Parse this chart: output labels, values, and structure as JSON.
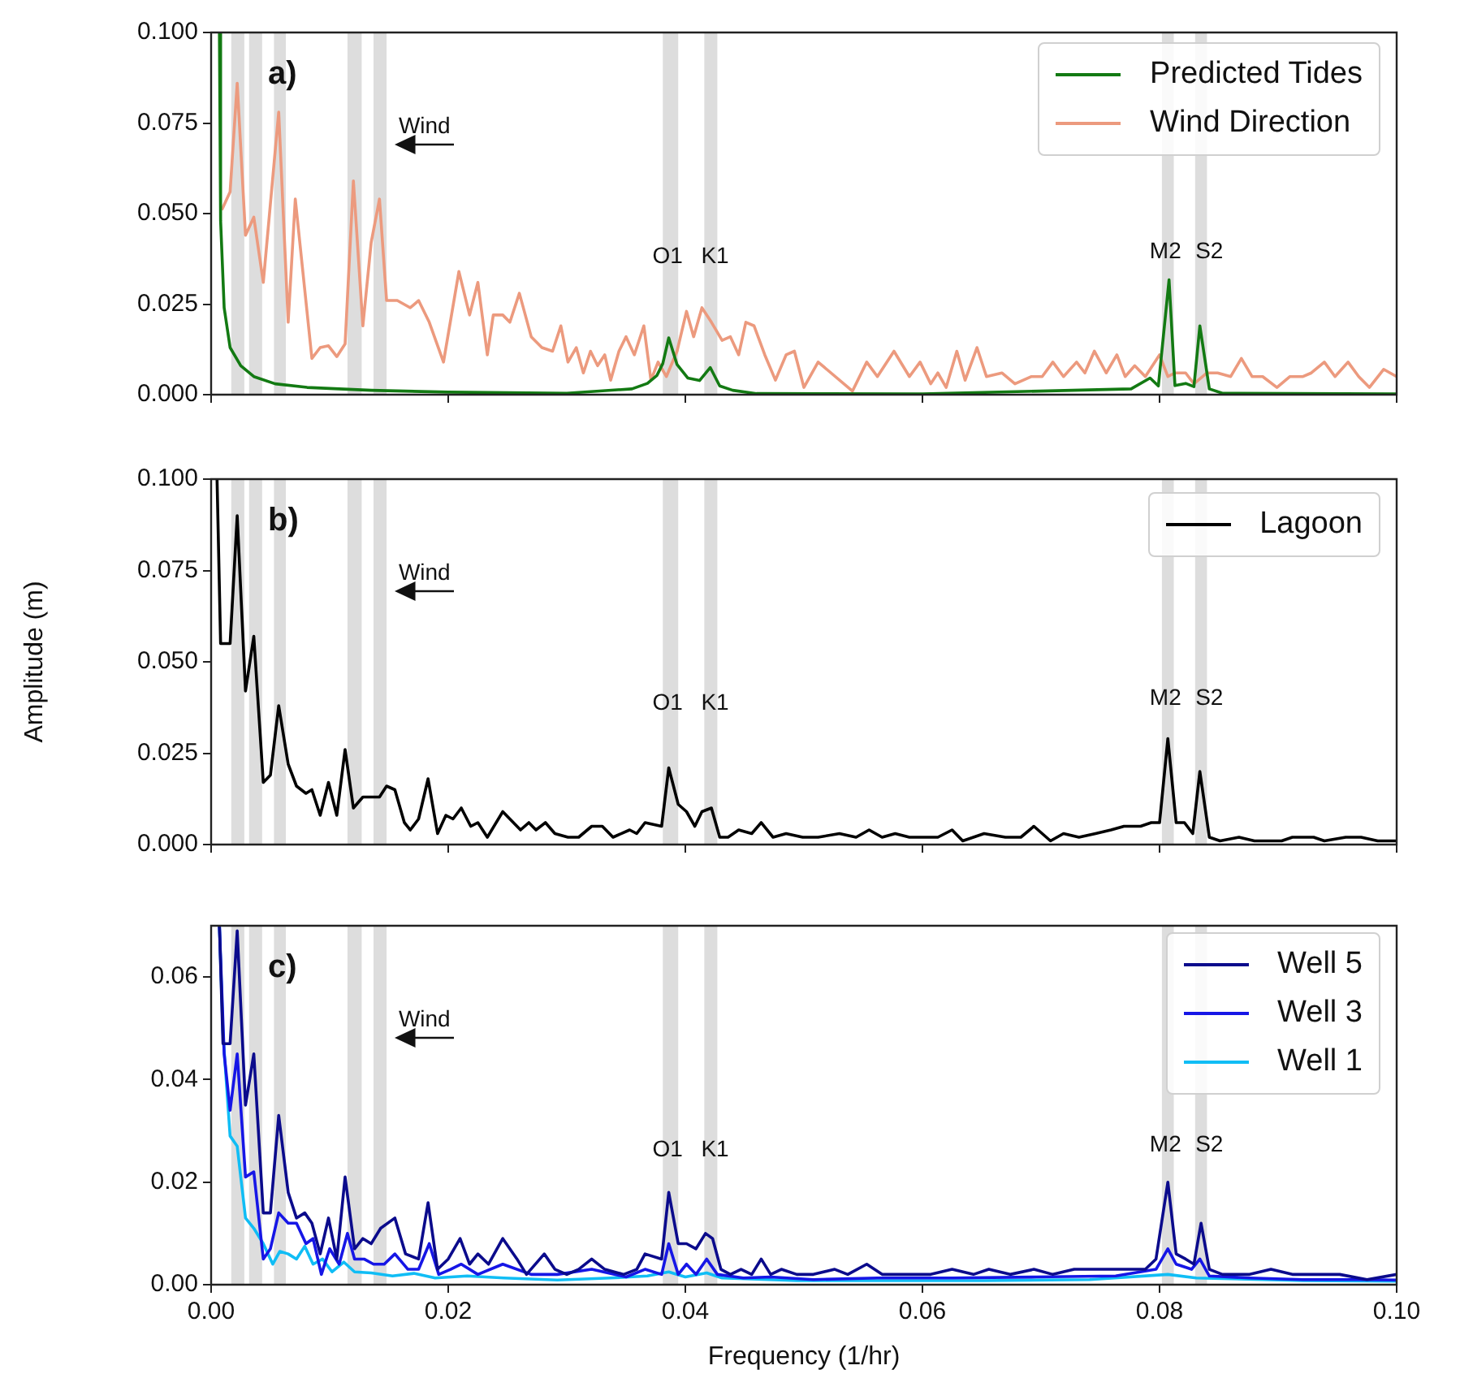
{
  "chart_data": [
    {
      "type": "line",
      "xlim": [
        0,
        0.1
      ],
      "ylim": [
        0,
        0.1
      ],
      "xticks": [
        {
          "value": 0,
          "label": null
        },
        {
          "value": 0.02,
          "label": null
        },
        {
          "value": 0.04,
          "label": null
        },
        {
          "value": 0.06,
          "label": null
        },
        {
          "value": 0.08,
          "label": null
        },
        {
          "value": 0.1,
          "label": null
        }
      ],
      "yticks": [
        {
          "value": 0,
          "label": "0.000"
        },
        {
          "value": 0.025,
          "label": "0.025"
        },
        {
          "value": 0.05,
          "label": "0.050"
        },
        {
          "value": 0.075,
          "label": "0.075"
        },
        {
          "value": 0.1,
          "label": "0.100"
        }
      ],
      "tick_labels": "y",
      "grid": false,
      "legend": "top right",
      "bands": [
        {
          "axis": "x",
          "from": 0.0017,
          "to": 0.0028,
          "color": "#dddddd"
        },
        {
          "axis": "x",
          "from": 0.0032,
          "to": 0.0043,
          "color": "#dddddd"
        },
        {
          "axis": "x",
          "from": 0.0053,
          "to": 0.0063,
          "color": "#dddddd"
        },
        {
          "axis": "x",
          "from": 0.0115,
          "to": 0.0127,
          "color": "#dddddd"
        },
        {
          "axis": "x",
          "from": 0.0137,
          "to": 0.0148,
          "color": "#dddddd"
        },
        {
          "axis": "x",
          "from": 0.0381,
          "to": 0.0394,
          "color": "#dddddd"
        },
        {
          "axis": "x",
          "from": 0.0416,
          "to": 0.0427,
          "color": "#dddddd"
        },
        {
          "axis": "x",
          "from": 0.0802,
          "to": 0.0812,
          "color": "#dddddd"
        },
        {
          "axis": "x",
          "from": 0.083,
          "to": 0.084,
          "color": "#dddddd"
        }
      ],
      "annotations": [
        "a)",
        "Wind",
        "O1",
        "K1",
        "M2",
        "S2"
      ],
      "series": [
        {
          "name": "Predicted Tides",
          "color": "#137a13",
          "x": [
            0.0007,
            0.0008,
            0.0011,
            0.0016,
            0.0025,
            0.0036,
            0.0054,
            0.0081,
            0.0135,
            0.02,
            0.03,
            0.0355,
            0.0368,
            0.0376,
            0.0381,
            0.0386,
            0.0393,
            0.0402,
            0.0412,
            0.0421,
            0.0429,
            0.044,
            0.046,
            0.06,
            0.0776,
            0.0792,
            0.0799,
            0.0808,
            0.0813,
            0.0822,
            0.0829,
            0.0834,
            0.0842,
            0.0853,
            0.1
          ],
          "values": [
            0.1,
            0.048,
            0.024,
            0.013,
            0.008,
            0.005,
            0.003,
            0.002,
            0.0012,
            0.0007,
            0.0004,
            0.0016,
            0.0031,
            0.0053,
            0.0086,
            0.0157,
            0.0083,
            0.0046,
            0.0039,
            0.0075,
            0.0024,
            0.0012,
            0.0003,
            0.0002,
            0.0016,
            0.0046,
            0.0024,
            0.0317,
            0.0025,
            0.0031,
            0.0022,
            0.019,
            0.0016,
            0.0004,
            0.0002
          ]
        },
        {
          "name": "Wind Direction",
          "color": "#ec9a7e",
          "x": [
            0.0009,
            0.0016,
            0.0022,
            0.0029,
            0.0036,
            0.0044,
            0.0057,
            0.0065,
            0.0071,
            0.0085,
            0.0092,
            0.0099,
            0.0106,
            0.0113,
            0.012,
            0.0128,
            0.0135,
            0.0142,
            0.0148,
            0.0157,
            0.0168,
            0.0175,
            0.0184,
            0.0196,
            0.0209,
            0.0218,
            0.0225,
            0.0233,
            0.0238,
            0.0246,
            0.0252,
            0.026,
            0.027,
            0.0279,
            0.0288,
            0.0295,
            0.0301,
            0.0308,
            0.0314,
            0.032,
            0.0326,
            0.0332,
            0.0337,
            0.0344,
            0.035,
            0.0357,
            0.0365,
            0.0371,
            0.0377,
            0.0384,
            0.0393,
            0.0401,
            0.0407,
            0.0414,
            0.0422,
            0.0431,
            0.0438,
            0.0445,
            0.0451,
            0.0458,
            0.0467,
            0.0476,
            0.0485,
            0.0492,
            0.05,
            0.0512,
            0.0541,
            0.0553,
            0.0562,
            0.0576,
            0.0589,
            0.0598,
            0.0607,
            0.0613,
            0.062,
            0.0629,
            0.0636,
            0.0646,
            0.0654,
            0.0667,
            0.0678,
            0.0692,
            0.0701,
            0.071,
            0.0719,
            0.073,
            0.0737,
            0.0745,
            0.0755,
            0.0764,
            0.0771,
            0.0779,
            0.0788,
            0.08,
            0.0807,
            0.0813,
            0.0822,
            0.0829,
            0.084,
            0.0849,
            0.086,
            0.0869,
            0.0878,
            0.0887,
            0.0899,
            0.091,
            0.0921,
            0.0928,
            0.0939,
            0.0948,
            0.0959,
            0.0968,
            0.0977,
            0.0989,
            0.1
          ],
          "values": [
            0.051,
            0.056,
            0.086,
            0.044,
            0.049,
            0.031,
            0.078,
            0.02,
            0.054,
            0.01,
            0.013,
            0.0135,
            0.0105,
            0.014,
            0.059,
            0.019,
            0.042,
            0.054,
            0.026,
            0.026,
            0.024,
            0.026,
            0.02,
            0.009,
            0.034,
            0.022,
            0.031,
            0.011,
            0.022,
            0.022,
            0.02,
            0.028,
            0.016,
            0.013,
            0.012,
            0.019,
            0.009,
            0.013,
            0.006,
            0.012,
            0.008,
            0.011,
            0.004,
            0.012,
            0.016,
            0.011,
            0.019,
            0.004,
            0.009,
            0.005,
            0.012,
            0.023,
            0.016,
            0.024,
            0.02,
            0.015,
            0.016,
            0.011,
            0.02,
            0.019,
            0.011,
            0.004,
            0.011,
            0.012,
            0.002,
            0.009,
            0.001,
            0.009,
            0.005,
            0.012,
            0.005,
            0.009,
            0.003,
            0.006,
            0.002,
            0.012,
            0.004,
            0.013,
            0.005,
            0.006,
            0.003,
            0.005,
            0.005,
            0.009,
            0.005,
            0.009,
            0.006,
            0.012,
            0.006,
            0.011,
            0.005,
            0.008,
            0.005,
            0.011,
            0.005,
            0.006,
            0.006,
            0.003,
            0.006,
            0.006,
            0.005,
            0.01,
            0.005,
            0.005,
            0.002,
            0.005,
            0.005,
            0.006,
            0.009,
            0.005,
            0.009,
            0.005,
            0.002,
            0.007,
            0.005
          ]
        }
      ]
    },
    {
      "type": "line",
      "xlim": [
        0,
        0.1
      ],
      "ylim": [
        0,
        0.1
      ],
      "ylabel": "Amplitude (m)",
      "xticks": [
        {
          "value": 0,
          "label": null
        },
        {
          "value": 0.02,
          "label": null
        },
        {
          "value": 0.04,
          "label": null
        },
        {
          "value": 0.06,
          "label": null
        },
        {
          "value": 0.08,
          "label": null
        },
        {
          "value": 0.1,
          "label": null
        }
      ],
      "yticks": [
        {
          "value": 0,
          "label": "0.000"
        },
        {
          "value": 0.025,
          "label": "0.025"
        },
        {
          "value": 0.05,
          "label": "0.050"
        },
        {
          "value": 0.075,
          "label": "0.075"
        },
        {
          "value": 0.1,
          "label": "0.100"
        }
      ],
      "tick_labels": "y",
      "grid": false,
      "legend": "top right",
      "bands": [
        {
          "axis": "x",
          "from": 0.0017,
          "to": 0.0028,
          "color": "#dddddd"
        },
        {
          "axis": "x",
          "from": 0.0032,
          "to": 0.0043,
          "color": "#dddddd"
        },
        {
          "axis": "x",
          "from": 0.0053,
          "to": 0.0063,
          "color": "#dddddd"
        },
        {
          "axis": "x",
          "from": 0.0115,
          "to": 0.0127,
          "color": "#dddddd"
        },
        {
          "axis": "x",
          "from": 0.0137,
          "to": 0.0148,
          "color": "#dddddd"
        },
        {
          "axis": "x",
          "from": 0.0381,
          "to": 0.0394,
          "color": "#dddddd"
        },
        {
          "axis": "x",
          "from": 0.0416,
          "to": 0.0427,
          "color": "#dddddd"
        },
        {
          "axis": "x",
          "from": 0.0802,
          "to": 0.0812,
          "color": "#dddddd"
        },
        {
          "axis": "x",
          "from": 0.083,
          "to": 0.084,
          "color": "#dddddd"
        }
      ],
      "annotations": [
        "b)",
        "Wind",
        "O1",
        "K1",
        "M2",
        "S2"
      ],
      "series": [
        {
          "name": "Lagoon",
          "color": "#000000",
          "x": [
            0.0005,
            0.0008,
            0.0016,
            0.0022,
            0.0029,
            0.0036,
            0.0044,
            0.005,
            0.0057,
            0.0065,
            0.0072,
            0.008,
            0.0085,
            0.0092,
            0.0099,
            0.0106,
            0.0113,
            0.012,
            0.0128,
            0.0142,
            0.0148,
            0.0155,
            0.0163,
            0.0168,
            0.0175,
            0.0183,
            0.0191,
            0.0198,
            0.0204,
            0.0211,
            0.0219,
            0.0225,
            0.0233,
            0.0246,
            0.0261,
            0.0268,
            0.0274,
            0.0282,
            0.029,
            0.0301,
            0.031,
            0.0321,
            0.033,
            0.0339,
            0.0353,
            0.0359,
            0.0366,
            0.038,
            0.0386,
            0.0394,
            0.0401,
            0.0408,
            0.0414,
            0.0422,
            0.0429,
            0.0436,
            0.0445,
            0.0456,
            0.0464,
            0.0474,
            0.0485,
            0.0499,
            0.0512,
            0.053,
            0.0544,
            0.0555,
            0.0566,
            0.0577,
            0.0589,
            0.0602,
            0.0613,
            0.0625,
            0.0634,
            0.0652,
            0.067,
            0.0683,
            0.0694,
            0.0708,
            0.0719,
            0.0732,
            0.0746,
            0.0759,
            0.077,
            0.0784,
            0.0793,
            0.08,
            0.0807,
            0.0814,
            0.0821,
            0.0828,
            0.0834,
            0.0842,
            0.0851,
            0.0867,
            0.088,
            0.0903,
            0.0912,
            0.093,
            0.0939,
            0.0957,
            0.097,
            0.0984,
            0.1
          ],
          "values": [
            0.1,
            0.055,
            0.055,
            0.09,
            0.042,
            0.057,
            0.017,
            0.019,
            0.038,
            0.022,
            0.016,
            0.014,
            0.015,
            0.008,
            0.017,
            0.008,
            0.026,
            0.01,
            0.013,
            0.013,
            0.016,
            0.015,
            0.006,
            0.004,
            0.007,
            0.018,
            0.003,
            0.008,
            0.007,
            0.01,
            0.005,
            0.006,
            0.002,
            0.009,
            0.004,
            0.006,
            0.004,
            0.006,
            0.003,
            0.002,
            0.002,
            0.005,
            0.005,
            0.002,
            0.004,
            0.003,
            0.006,
            0.005,
            0.021,
            0.011,
            0.009,
            0.005,
            0.009,
            0.01,
            0.002,
            0.002,
            0.004,
            0.003,
            0.006,
            0.002,
            0.003,
            0.002,
            0.002,
            0.003,
            0.002,
            0.004,
            0.002,
            0.003,
            0.002,
            0.002,
            0.002,
            0.004,
            0.001,
            0.003,
            0.002,
            0.002,
            0.005,
            0.001,
            0.003,
            0.002,
            0.003,
            0.004,
            0.005,
            0.005,
            0.006,
            0.006,
            0.029,
            0.006,
            0.006,
            0.003,
            0.02,
            0.002,
            0.001,
            0.002,
            0.001,
            0.001,
            0.002,
            0.002,
            0.001,
            0.002,
            0.002,
            0.001,
            0.001
          ]
        }
      ]
    },
    {
      "type": "line",
      "xlim": [
        0,
        0.1
      ],
      "ylim": [
        0,
        0.07
      ],
      "xlabel": "Frequency (1/hr)",
      "xticks": [
        {
          "value": 0,
          "label": "0.00"
        },
        0.02,
        0.04,
        0.06,
        0.08,
        {
          "value": 0.1,
          "label": "0.10"
        }
      ],
      "yticks": [
        {
          "value": 0,
          "label": "0.00"
        },
        0.02,
        0.04,
        0.06
      ],
      "grid": false,
      "legend": "top right",
      "bands": [
        {
          "axis": "x",
          "from": 0.0017,
          "to": 0.0028,
          "color": "#dddddd"
        },
        {
          "axis": "x",
          "from": 0.0032,
          "to": 0.0043,
          "color": "#dddddd"
        },
        {
          "axis": "x",
          "from": 0.0053,
          "to": 0.0063,
          "color": "#dddddd"
        },
        {
          "axis": "x",
          "from": 0.0115,
          "to": 0.0127,
          "color": "#dddddd"
        },
        {
          "axis": "x",
          "from": 0.0137,
          "to": 0.0148,
          "color": "#dddddd"
        },
        {
          "axis": "x",
          "from": 0.0381,
          "to": 0.0394,
          "color": "#dddddd"
        },
        {
          "axis": "x",
          "from": 0.0416,
          "to": 0.0427,
          "color": "#dddddd"
        },
        {
          "axis": "x",
          "from": 0.0802,
          "to": 0.0812,
          "color": "#dddddd"
        },
        {
          "axis": "x",
          "from": 0.083,
          "to": 0.084,
          "color": "#dddddd"
        }
      ],
      "annotations": [
        "c)",
        "Wind",
        "O1",
        "K1",
        "M2",
        "S2"
      ],
      "series": [
        {
          "name": "Well 5",
          "color": "#0b0b8c",
          "x": [
            0.0007,
            0.001,
            0.0016,
            0.0022,
            0.0029,
            0.0036,
            0.0044,
            0.005,
            0.0057,
            0.0065,
            0.0072,
            0.0079,
            0.0085,
            0.0092,
            0.0099,
            0.0106,
            0.0113,
            0.0121,
            0.0128,
            0.0135,
            0.0143,
            0.0155,
            0.0164,
            0.0175,
            0.0183,
            0.0191,
            0.02,
            0.021,
            0.0218,
            0.0225,
            0.0234,
            0.0246,
            0.0258,
            0.0266,
            0.0281,
            0.029,
            0.03,
            0.031,
            0.0321,
            0.0332,
            0.0348,
            0.0359,
            0.0366,
            0.038,
            0.0386,
            0.0394,
            0.0401,
            0.0409,
            0.0417,
            0.0423,
            0.043,
            0.0438,
            0.0447,
            0.0456,
            0.0464,
            0.0472,
            0.0481,
            0.0494,
            0.0508,
            0.0526,
            0.0537,
            0.0553,
            0.0566,
            0.0589,
            0.0607,
            0.0625,
            0.0643,
            0.0656,
            0.0674,
            0.0694,
            0.071,
            0.0728,
            0.0743,
            0.0761,
            0.0775,
            0.0788,
            0.0797,
            0.0807,
            0.0814,
            0.0822,
            0.0829,
            0.0835,
            0.0842,
            0.0853,
            0.0876,
            0.0894,
            0.0912,
            0.093,
            0.0952,
            0.0975,
            0.1
          ],
          "values": [
            0.07,
            0.047,
            0.047,
            0.069,
            0.035,
            0.045,
            0.014,
            0.014,
            0.033,
            0.018,
            0.013,
            0.014,
            0.012,
            0.006,
            0.013,
            0.005,
            0.021,
            0.007,
            0.009,
            0.008,
            0.011,
            0.013,
            0.006,
            0.005,
            0.016,
            0.003,
            0.005,
            0.009,
            0.004,
            0.006,
            0.004,
            0.009,
            0.005,
            0.002,
            0.006,
            0.003,
            0.002,
            0.003,
            0.005,
            0.003,
            0.002,
            0.003,
            0.006,
            0.005,
            0.018,
            0.008,
            0.008,
            0.007,
            0.01,
            0.009,
            0.003,
            0.002,
            0.003,
            0.002,
            0.005,
            0.002,
            0.003,
            0.002,
            0.002,
            0.003,
            0.002,
            0.004,
            0.002,
            0.002,
            0.002,
            0.003,
            0.002,
            0.003,
            0.002,
            0.003,
            0.002,
            0.003,
            0.003,
            0.003,
            0.003,
            0.003,
            0.005,
            0.02,
            0.006,
            0.005,
            0.004,
            0.012,
            0.003,
            0.002,
            0.002,
            0.003,
            0.002,
            0.002,
            0.002,
            0.001,
            0.002
          ]
        },
        {
          "name": "Well 3",
          "color": "#1616e6",
          "x": [
            0.0007,
            0.0011,
            0.0016,
            0.0022,
            0.0029,
            0.0036,
            0.0044,
            0.005,
            0.0057,
            0.0065,
            0.0072,
            0.008,
            0.0086,
            0.0093,
            0.01,
            0.0108,
            0.0115,
            0.0121,
            0.0129,
            0.0137,
            0.0146,
            0.0155,
            0.0166,
            0.0175,
            0.0184,
            0.0192,
            0.0202,
            0.0211,
            0.0225,
            0.0246,
            0.027,
            0.0292,
            0.0321,
            0.035,
            0.0366,
            0.038,
            0.0386,
            0.0394,
            0.0401,
            0.0409,
            0.0418,
            0.0427,
            0.0449,
            0.0472,
            0.0508,
            0.0562,
            0.0625,
            0.0696,
            0.0763,
            0.0797,
            0.0807,
            0.0814,
            0.0827,
            0.0834,
            0.0842,
            0.0876,
            0.0921,
            0.0966,
            0.1
          ],
          "values": [
            0.07,
            0.045,
            0.034,
            0.045,
            0.021,
            0.022,
            0.005,
            0.007,
            0.014,
            0.012,
            0.012,
            0.008,
            0.009,
            0.002,
            0.007,
            0.004,
            0.01,
            0.005,
            0.005,
            0.004,
            0.004,
            0.006,
            0.003,
            0.003,
            0.008,
            0.002,
            0.003,
            0.004,
            0.002,
            0.004,
            0.002,
            0.002,
            0.003,
            0.0015,
            0.003,
            0.002,
            0.008,
            0.002,
            0.004,
            0.002,
            0.005,
            0.002,
            0.0013,
            0.0015,
            0.001,
            0.0013,
            0.0013,
            0.0015,
            0.0017,
            0.003,
            0.007,
            0.004,
            0.003,
            0.005,
            0.0017,
            0.0013,
            0.001,
            0.001,
            0.0009
          ]
        },
        {
          "name": "Well 1",
          "color": "#10bdf5",
          "x": [
            0.0007,
            0.001,
            0.0016,
            0.0022,
            0.0029,
            0.0036,
            0.0044,
            0.0052,
            0.0058,
            0.0065,
            0.0072,
            0.0079,
            0.0086,
            0.0094,
            0.0102,
            0.0112,
            0.0121,
            0.0135,
            0.0153,
            0.0171,
            0.0189,
            0.0216,
            0.0247,
            0.0292,
            0.0337,
            0.0368,
            0.0386,
            0.04,
            0.0418,
            0.0431,
            0.0494,
            0.0652,
            0.0741,
            0.0807,
            0.0831,
            0.0921,
            0.1
          ],
          "values": [
            0.07,
            0.049,
            0.029,
            0.027,
            0.013,
            0.011,
            0.008,
            0.004,
            0.0065,
            0.006,
            0.005,
            0.0075,
            0.004,
            0.005,
            0.0025,
            0.0044,
            0.0025,
            0.0023,
            0.0017,
            0.0022,
            0.0013,
            0.0017,
            0.0013,
            0.0009,
            0.0013,
            0.0017,
            0.0025,
            0.0015,
            0.0023,
            0.0013,
            0.0008,
            0.0008,
            0.001,
            0.002,
            0.0013,
            0.0008,
            0.0007
          ]
        }
      ]
    }
  ]
}
